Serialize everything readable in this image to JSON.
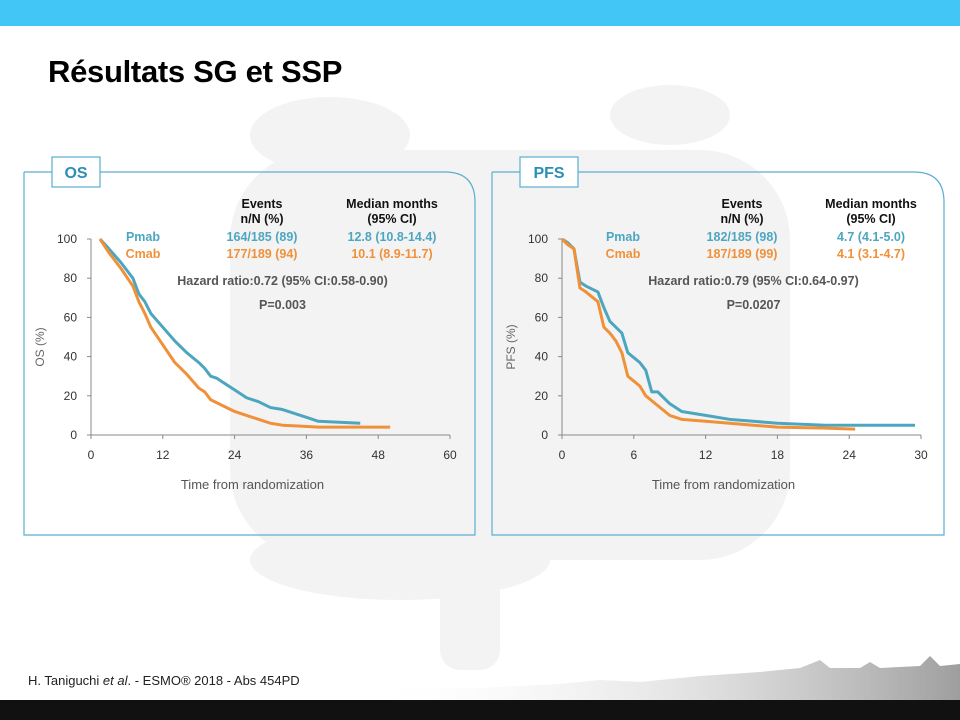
{
  "slide": {
    "title": "Résultats SG et SSP",
    "footer_author": "H. Taniguchi ",
    "footer_etal": "et al",
    "footer_rest": ". - ESMO® 2018 -  Abs 454PD"
  },
  "colors": {
    "pmab": "#4da6bf",
    "cmab": "#f0913a",
    "accent": "#42c6f5",
    "panel_border": "#5aaed0"
  },
  "chart_data": [
    {
      "type": "line",
      "panel_label": "OS",
      "ylabel": "OS (%)",
      "xlabel": "Time from randomization",
      "xlim": [
        0,
        60
      ],
      "ylim": [
        0,
        100
      ],
      "xticks": [
        0,
        12,
        24,
        36,
        48,
        60
      ],
      "yticks": [
        0,
        20,
        40,
        60,
        80,
        100
      ],
      "table": {
        "col_events": [
          "Events",
          "n/N (%)"
        ],
        "col_median": [
          "Median months",
          "(95% CI)"
        ],
        "rows": [
          {
            "arm": "Pmab",
            "events": "164/185 (89)",
            "median": "12.8 (10.8-14.4)"
          },
          {
            "arm": "Cmab",
            "events": "177/189 (94)",
            "median": "10.1 (8.9-11.7)"
          }
        ]
      },
      "hazard_ratio": "Hazard ratio:0.72 (95% CI:0.58-0.90)",
      "p_value": "P=0.003",
      "series": [
        {
          "name": "Pmab",
          "x": [
            1.5,
            3,
            5,
            7,
            8,
            9,
            10,
            12,
            14,
            16,
            18,
            19,
            20,
            21,
            22,
            24,
            26,
            28,
            30,
            32,
            34,
            36,
            38,
            45
          ],
          "y": [
            100,
            95,
            88,
            80,
            72,
            68,
            62,
            55,
            48,
            42,
            37,
            34,
            30,
            29,
            27,
            23,
            19,
            17,
            14,
            13,
            11,
            9,
            7,
            6
          ]
        },
        {
          "name": "Cmab",
          "x": [
            1.5,
            3,
            5,
            7,
            8,
            9,
            10,
            12,
            14,
            16,
            18,
            19,
            20,
            22,
            24,
            26,
            28,
            30,
            32,
            35,
            38,
            42,
            50
          ],
          "y": [
            100,
            93,
            85,
            76,
            68,
            62,
            55,
            46,
            37,
            31,
            24,
            22,
            18,
            15,
            12,
            10,
            8,
            6,
            5,
            4.5,
            4,
            4,
            4
          ]
        }
      ]
    },
    {
      "type": "line",
      "panel_label": "PFS",
      "ylabel": "PFS (%)",
      "xlabel": "Time from randomization",
      "xlim": [
        0,
        30
      ],
      "ylim": [
        0,
        100
      ],
      "xticks": [
        0,
        6,
        12,
        18,
        24,
        30
      ],
      "yticks": [
        0,
        20,
        40,
        60,
        80,
        100
      ],
      "table": {
        "col_events": [
          "Events",
          "n/N (%)"
        ],
        "col_median": [
          "Median months",
          "(95% CI)"
        ],
        "rows": [
          {
            "arm": "Pmab",
            "events": "182/185 (98)",
            "median": "4.7 (4.1-5.0)"
          },
          {
            "arm": "Cmab",
            "events": "187/189 (99)",
            "median": "4.1 (3.1-4.7)"
          }
        ]
      },
      "hazard_ratio": "Hazard ratio:0.79 (95% CI:0.64-0.97)",
      "p_value": "P=0.0207",
      "series": [
        {
          "name": "Pmab",
          "x": [
            0,
            0.5,
            1,
            1.5,
            2,
            3,
            3.5,
            4,
            4.5,
            5,
            5.5,
            6.5,
            7,
            7.5,
            8,
            9,
            10,
            12,
            14,
            16,
            18,
            22,
            29.5
          ],
          "y": [
            100,
            98,
            95,
            78,
            76,
            73,
            65,
            58,
            55,
            52,
            42,
            37,
            33,
            22,
            22,
            16,
            12,
            10,
            8,
            7,
            6,
            5,
            5
          ]
        },
        {
          "name": "Cmab",
          "x": [
            0,
            0.5,
            1,
            1.5,
            2,
            3,
            3.5,
            4,
            4.5,
            5,
            5.5,
            6.5,
            7,
            8,
            9,
            10,
            12,
            14,
            16,
            18,
            22,
            24.5
          ],
          "y": [
            100,
            97,
            95,
            75,
            73,
            68,
            55,
            52,
            48,
            42,
            30,
            25,
            20,
            15,
            10,
            8,
            7,
            6,
            5,
            4,
            3.5,
            3
          ]
        }
      ]
    }
  ]
}
